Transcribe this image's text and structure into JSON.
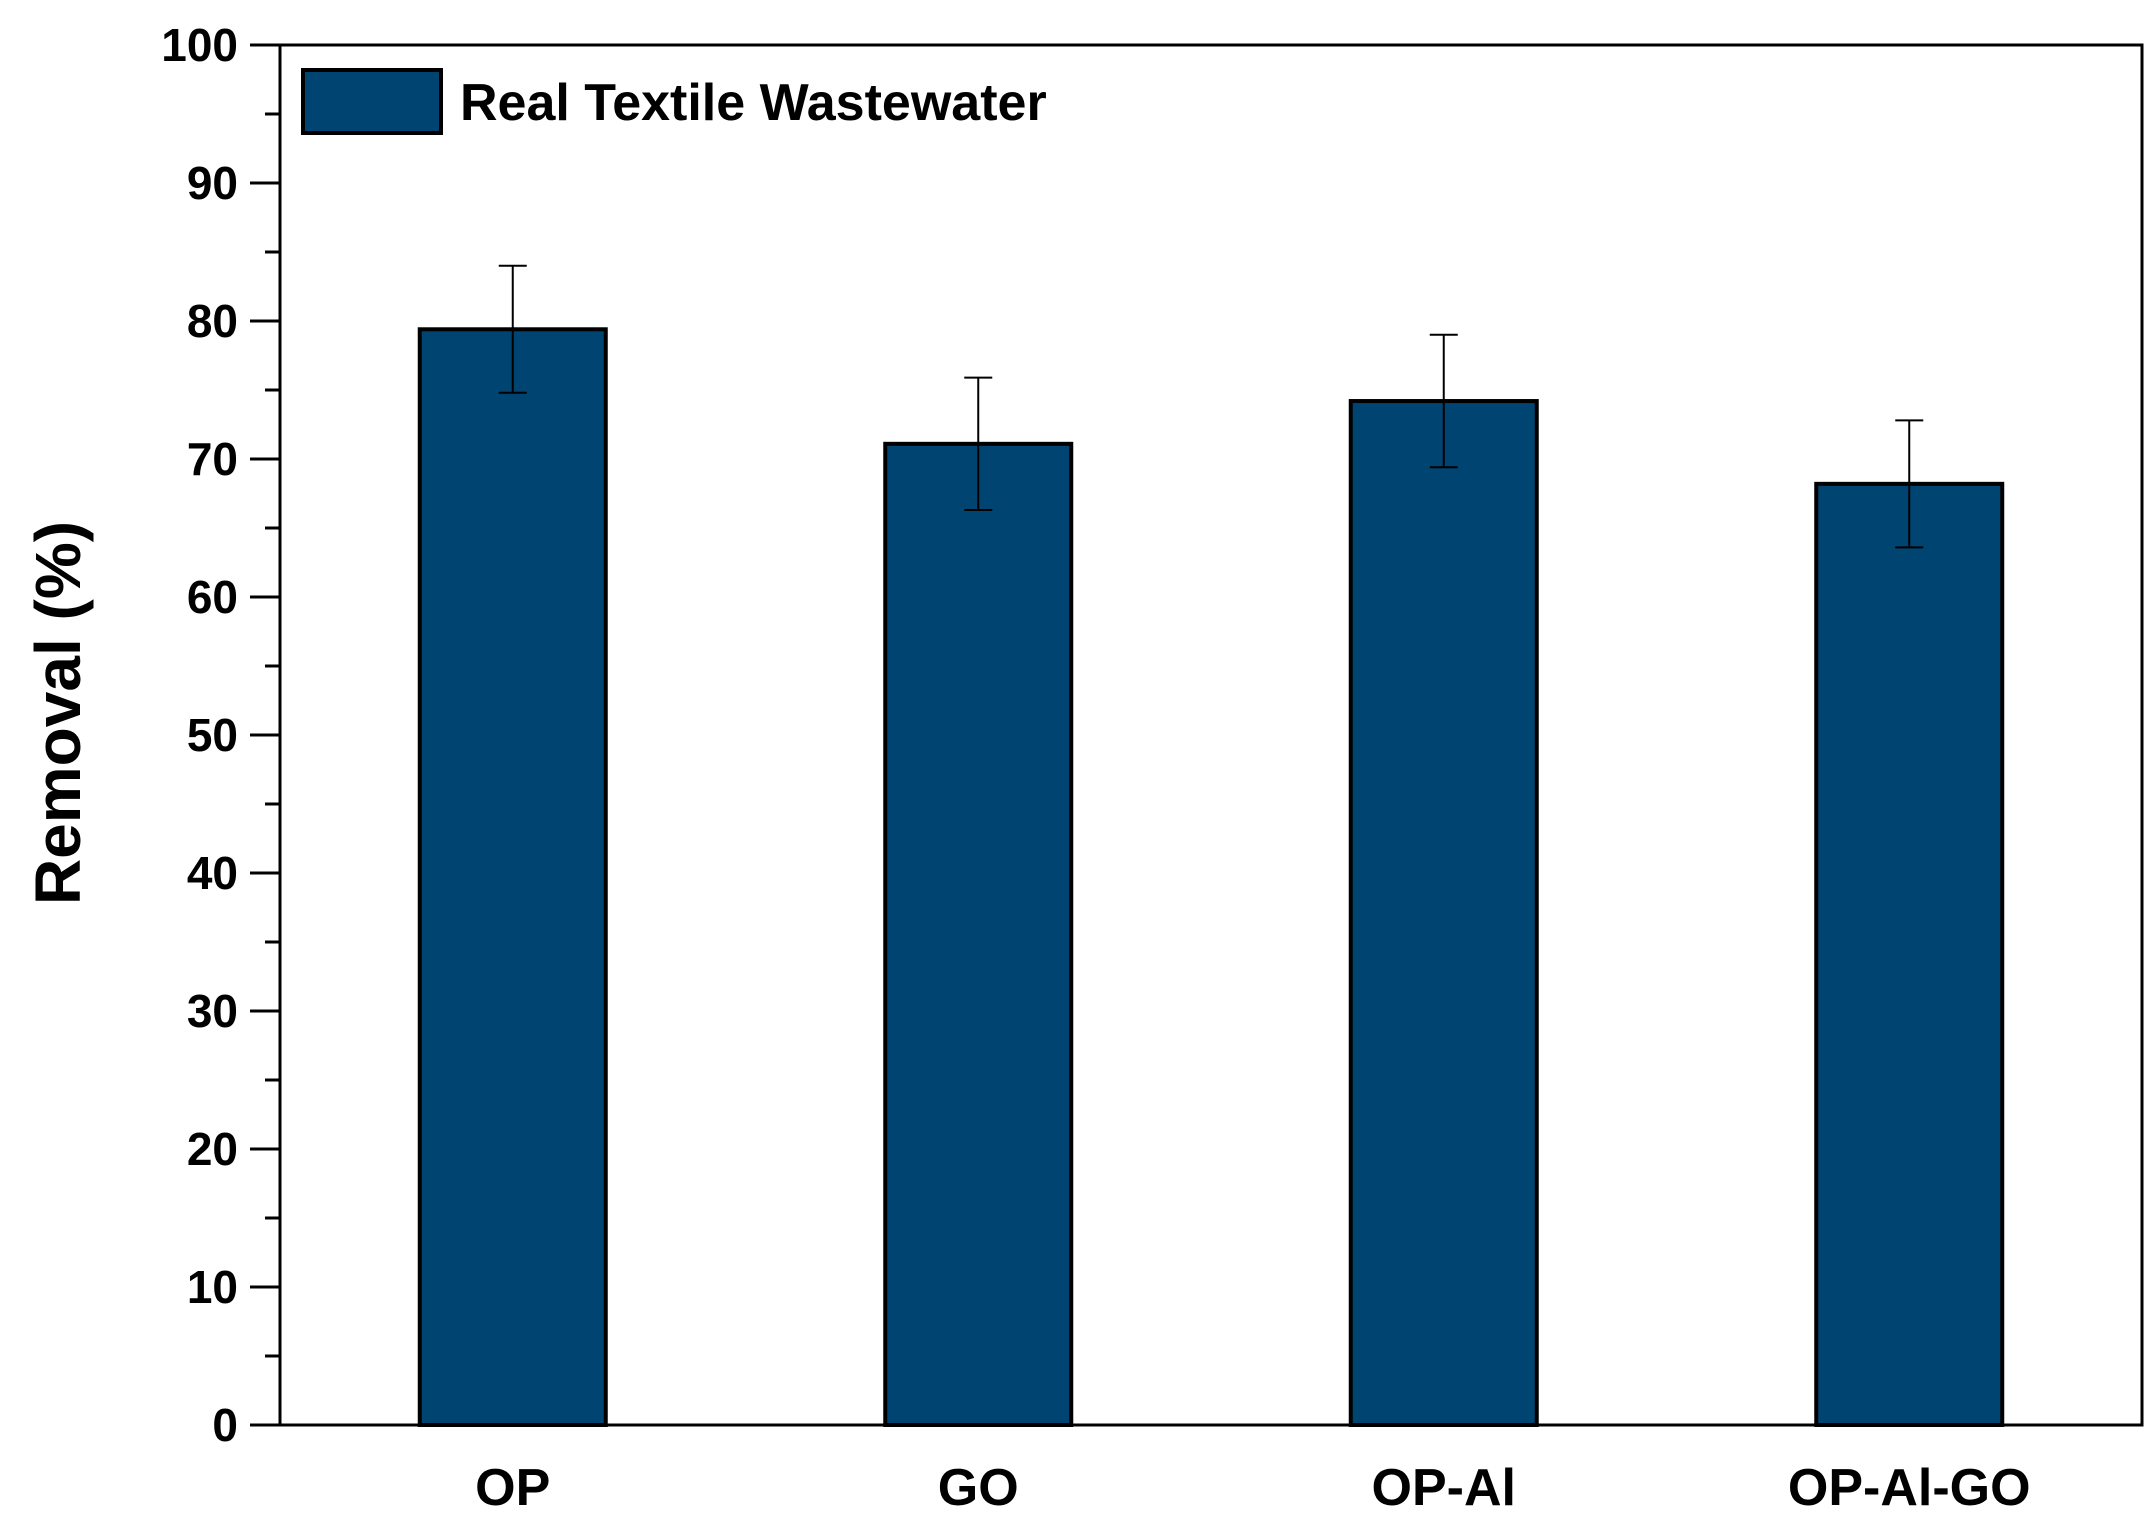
{
  "chart_data": {
    "type": "bar",
    "title": "",
    "xlabel": "",
    "ylabel": "Removal (%)",
    "ylim": [
      0,
      100
    ],
    "yticks": [
      0,
      10,
      20,
      30,
      40,
      50,
      60,
      70,
      80,
      90,
      100
    ],
    "ytick_labels": [
      "0",
      "10",
      "20",
      "30",
      "40",
      "50",
      "60",
      "70",
      "80",
      "90",
      "100"
    ],
    "minor_ytick_step": 5,
    "grid": false,
    "legend_placement": "top-left",
    "categories": [
      "OP",
      "GO",
      "OP-Al",
      "OP-Al-GO"
    ],
    "series": [
      {
        "name": "Real Textile Wastewater",
        "color": "#004471",
        "values": [
          79.4,
          71.1,
          74.2,
          68.2
        ],
        "errors": [
          4.6,
          4.8,
          4.8,
          4.6
        ]
      }
    ]
  }
}
